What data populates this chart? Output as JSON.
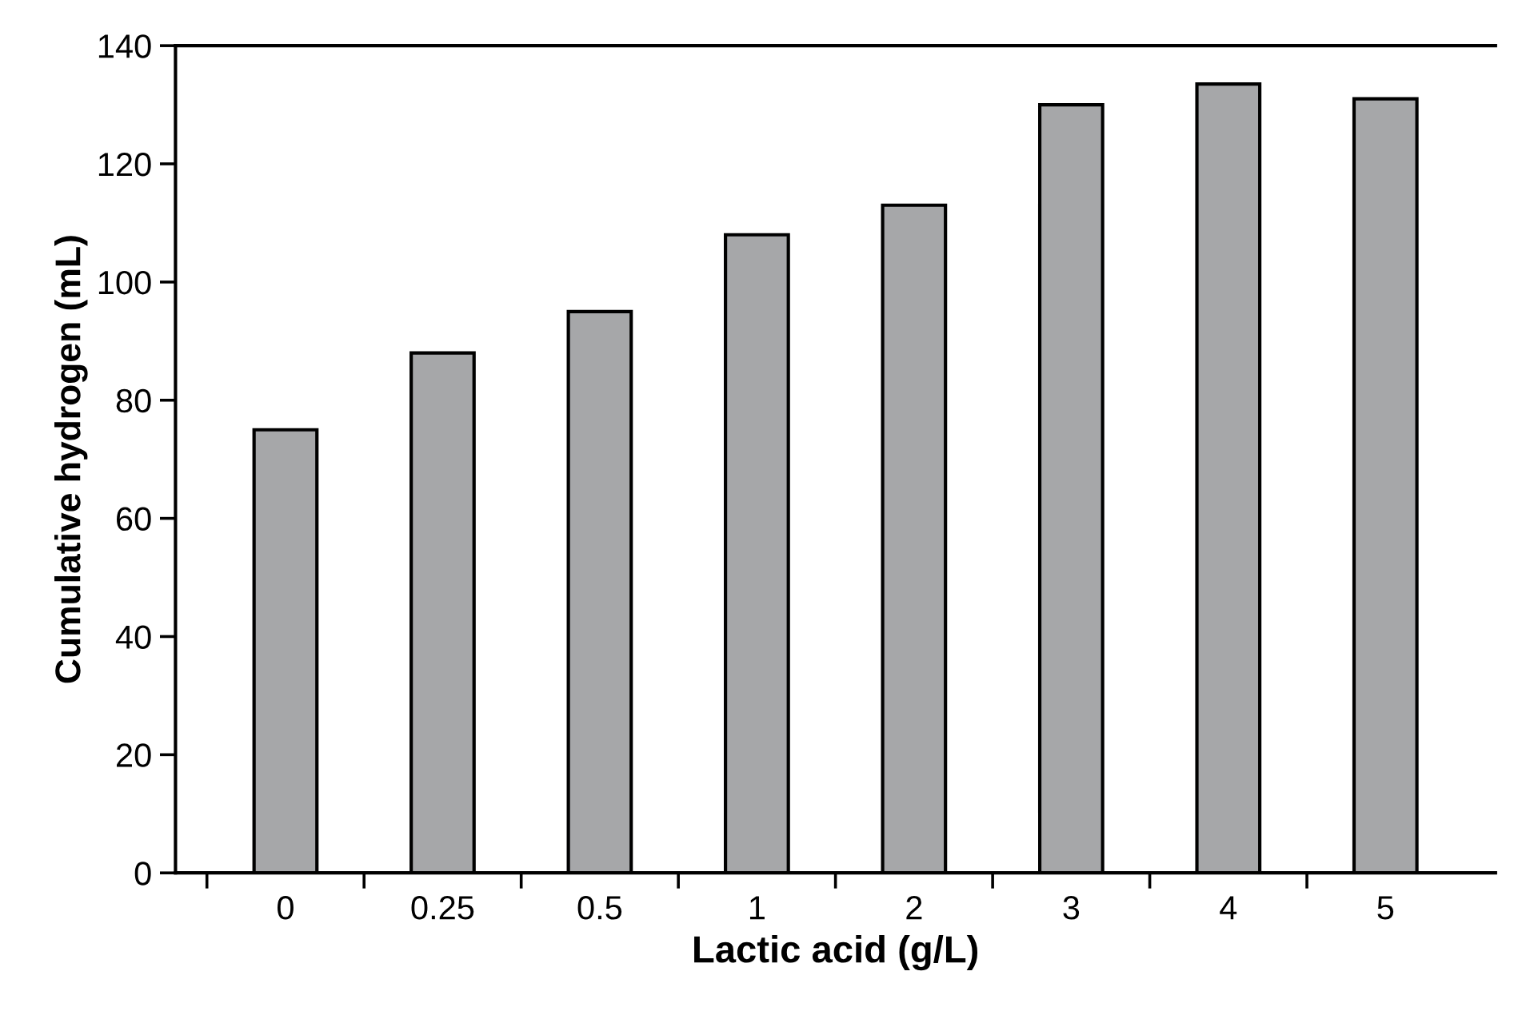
{
  "chart_data": {
    "type": "bar",
    "xlabel": "Lactic acid (g/L)",
    "ylabel": "Cumulative hydrogen (mL)",
    "categories": [
      "0",
      "0.25",
      "0.5",
      "1",
      "2",
      "3",
      "4",
      "5"
    ],
    "values": [
      75,
      88,
      95,
      108,
      113,
      130,
      133.5,
      131
    ],
    "color": "#a6a7a9",
    "ylim": [
      0,
      140
    ],
    "yticks": [
      0,
      20,
      40,
      60,
      80,
      100,
      120,
      140
    ],
    "grid": false,
    "legend": false
  }
}
